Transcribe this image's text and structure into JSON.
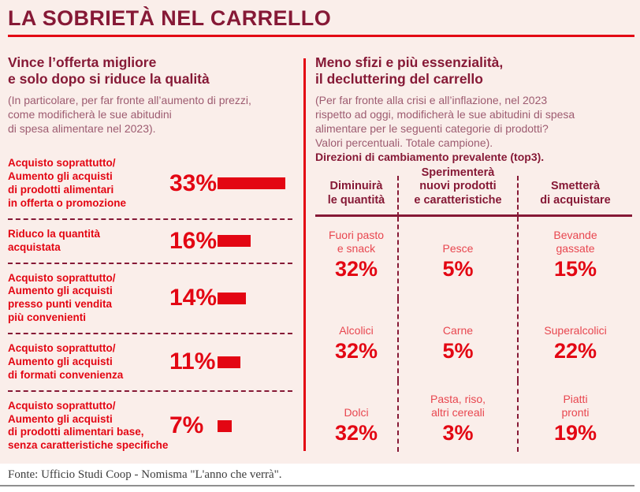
{
  "title": "LA SOBRIETÀ NEL CARRELLO",
  "colors": {
    "background": "#faeeea",
    "maroon": "#861936",
    "red": "#e30613",
    "muted_rose": "#9d5b70",
    "footer_rule": "#8f8f8f"
  },
  "left_panel": {
    "heading": "Vince l’offerta migliore\ne solo dopo si riduce la qualità",
    "note": "(In particolare, per far fronte all’aumento di prezzi,\ncome modificherà le sue abitudini\ndi spesa alimentare nel 2023).",
    "items": [
      {
        "label": "Acquisto soprattutto/\nAumento gli acquisti\ndi prodotti alimentari\nin offerta o promozione",
        "pct": "33%"
      },
      {
        "label": "Riduco la quantità\nacquistata",
        "pct": "16%"
      },
      {
        "label": "Acquisto soprattutto/\nAumento gli acquisti\npresso punti vendita\npiù convenienti",
        "pct": "14%"
      },
      {
        "label": "Acquisto soprattutto/\nAumento gli acquisti\ndi formati convenienza",
        "pct": "11%"
      },
      {
        "label": "Acquisto soprattutto/\nAumento gli acquisti\ndi prodotti alimentari base,\nsenza caratteristiche specifiche",
        "pct": "7%"
      }
    ]
  },
  "right_panel": {
    "heading": "Meno sfizi e più essenzialità,\nil decluttering del carrello",
    "note": "(Per far fronte alla crisi e all’inflazione, nel 2023\nrispetto ad oggi, modificherà le sue abitudini di spesa\nalimentare per le seguenti categorie di prodotti?\nValori percentuali. Totale campione).",
    "note_bold": "Direzioni di cambiamento prevalente (top3).",
    "table": {
      "headers": [
        "Diminuirà\nle quantità",
        "Sperimenterà\nnuovi prodotti\ne caratteristiche",
        "Smetterà\ndi acquistare"
      ],
      "rows": [
        {
          "cells": [
            {
              "label": "Fuori pasto\ne snack",
              "pct": "32%"
            },
            {
              "label": "Pesce",
              "pct": "5%"
            },
            {
              "label": "Bevande\ngassate",
              "pct": "15%"
            }
          ]
        },
        {
          "cells": [
            {
              "label": "Alcolici",
              "pct": "32%"
            },
            {
              "label": "Carne",
              "pct": "5%"
            },
            {
              "label": "Superalcolici",
              "pct": "22%"
            }
          ]
        },
        {
          "cells": [
            {
              "label": "Dolci",
              "pct": "32%"
            },
            {
              "label": "Pasta, riso,\naltri cereali",
              "pct": "3%"
            },
            {
              "label": "Piatti\npronti",
              "pct": "19%"
            }
          ]
        }
      ]
    }
  },
  "footer": {
    "source": "Fonte: Ufficio Studi Coop - Nomisma \"L'anno che verrà\"."
  },
  "chart_data": [
    {
      "type": "bar",
      "orientation": "horizontal",
      "title": "Vince l’offerta migliore e solo dopo si riduce la qualità",
      "subtitle": "(In particolare, per far fronte all’aumento di prezzi, come modificherà le sue abitudini di spesa alimentare nel 2023).",
      "categories": [
        "Acquisto soprattutto/Aumento gli acquisti di prodotti alimentari in offerta o promozione",
        "Riduco la quantità acquistata",
        "Acquisto soprattutto/Aumento gli acquisti presso punti vendita più convenienti",
        "Acquisto soprattutto/Aumento gli acquisti di formati convenienza",
        "Acquisto soprattutto/Aumento gli acquisti di prodotti alimentari base, senza caratteristiche specifiche"
      ],
      "values": [
        33,
        16,
        14,
        11,
        7
      ],
      "unit": "%",
      "bar_color": "#e30613",
      "xlabel": "",
      "ylabel": ""
    },
    {
      "type": "table",
      "title": "Meno sfizi e più essenzialità, il decluttering del carrello",
      "subtitle": "(Per far fronte alla crisi e all’inflazione, nel 2023 rispetto ad oggi, modificherà le sue abitudini di spesa alimentare per le seguenti categorie di prodotti? Valori percentuali. Totale campione). Direzioni di cambiamento prevalente (top3).",
      "columns": [
        "Diminuirà le quantità",
        "Sperimenterà nuovi prodotti e caratteristiche",
        "Smetterà di acquistare"
      ],
      "rows": [
        [
          {
            "label": "Fuori pasto e snack",
            "value": 32
          },
          {
            "label": "Pesce",
            "value": 5
          },
          {
            "label": "Bevande gassate",
            "value": 15
          }
        ],
        [
          {
            "label": "Alcolici",
            "value": 32
          },
          {
            "label": "Carne",
            "value": 5
          },
          {
            "label": "Superalcolici",
            "value": 22
          }
        ],
        [
          {
            "label": "Dolci",
            "value": 32
          },
          {
            "label": "Pasta, riso, altri cereali",
            "value": 3
          },
          {
            "label": "Piatti pronti",
            "value": 19
          }
        ]
      ],
      "unit": "%"
    }
  ]
}
